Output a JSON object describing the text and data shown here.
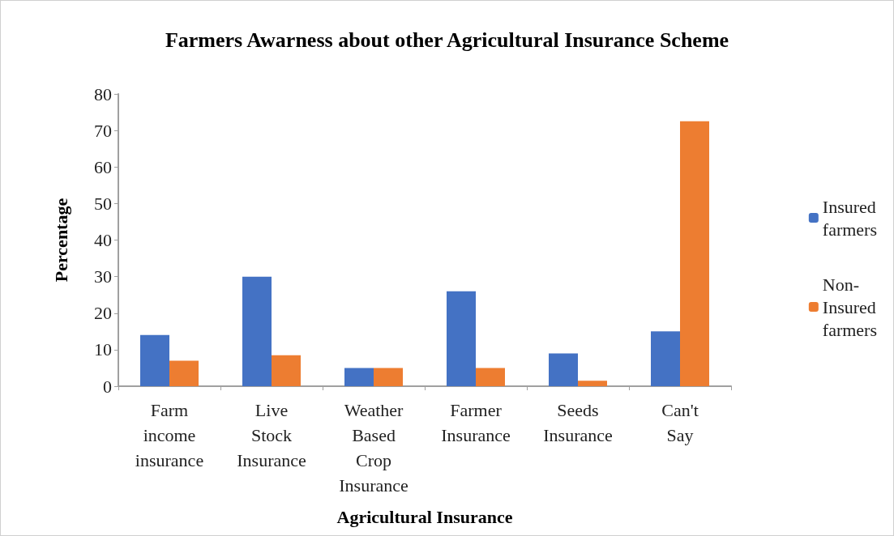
{
  "chart_data": {
    "type": "bar",
    "title": "Farmers Awarness about other Agricultural Insurance Scheme",
    "xlabel": "Agricultural Insurance",
    "ylabel": "Percentage",
    "categories": [
      "Farm income insurance",
      "Live Stock Insurance",
      "Weather Based Crop Insurance",
      "Farmer Insurance",
      "Seeds Insurance",
      "Can't Say"
    ],
    "series": [
      {
        "name": "Insured farmers",
        "color": "#4472c4",
        "values": [
          14,
          30,
          5,
          26,
          9,
          15
        ]
      },
      {
        "name": "Non-Insured farmers",
        "color": "#ed7d31",
        "values": [
          7,
          8.5,
          5,
          5,
          1.5,
          72.5
        ]
      }
    ],
    "ylim": [
      0,
      80
    ],
    "yticks": [
      0,
      10,
      20,
      30,
      40,
      50,
      60,
      70,
      80
    ],
    "grid": false,
    "legend": "right"
  }
}
